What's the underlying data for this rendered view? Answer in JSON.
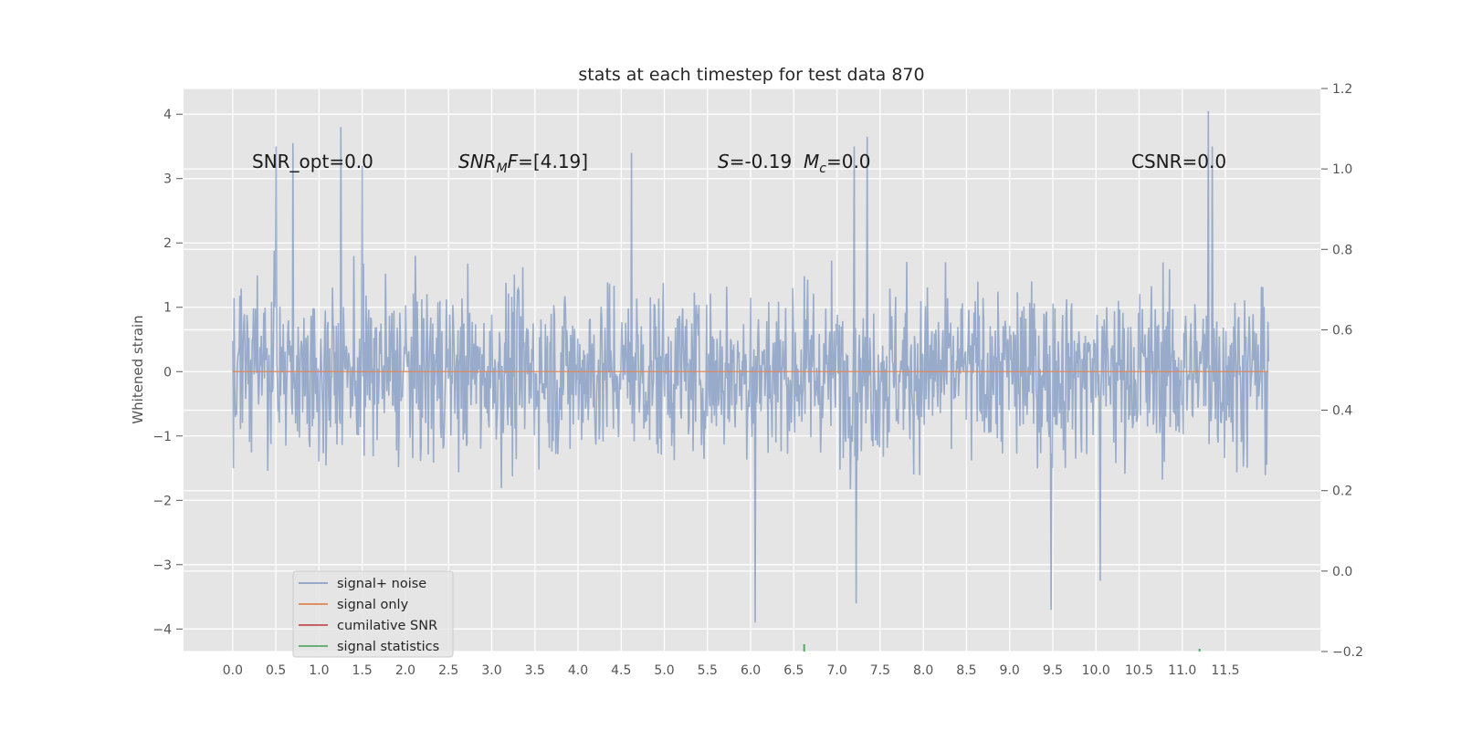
{
  "chart_data": {
    "type": "line",
    "title": "stats at each timestep for test data 870",
    "ylabel": "Whitened strain",
    "xlabel": "",
    "xlim": [
      -0.57,
      12.6
    ],
    "ylim": [
      -4.35,
      4.4
    ],
    "y2lim": [
      -0.2,
      1.2
    ],
    "x_ticks": [
      0.0,
      0.5,
      1.0,
      1.5,
      2.0,
      2.5,
      3.0,
      3.5,
      4.0,
      4.5,
      5.0,
      5.5,
      6.0,
      6.5,
      7.0,
      7.5,
      8.0,
      8.5,
      9.0,
      9.5,
      10.0,
      10.5,
      11.0,
      11.5
    ],
    "x_tick_labels": [
      "0.0",
      "0.5",
      "1.0",
      "1.5",
      "2.0",
      "2.5",
      "3.0",
      "3.5",
      "4.0",
      "4.5",
      "5.0",
      "5.5",
      "6.0",
      "6.5",
      "7.0",
      "7.5",
      "8.0",
      "8.5",
      "9.0",
      "9.5",
      "10.0",
      "10.5",
      "11.0",
      "11.5"
    ],
    "y_ticks": [
      -4,
      -3,
      -2,
      -1,
      0,
      1,
      2,
      3,
      4
    ],
    "y_tick_labels": [
      "−4",
      "−3",
      "−2",
      "−1",
      "0",
      "1",
      "2",
      "3",
      "4"
    ],
    "y2_ticks": [
      -0.2,
      0.0,
      0.2,
      0.4,
      0.6,
      0.8,
      1.0,
      1.2
    ],
    "y2_tick_labels": [
      "−0.2",
      "0.0",
      "0.2",
      "0.4",
      "0.6",
      "0.8",
      "1.0",
      "1.2"
    ],
    "grid": true,
    "legend_position": "lower-left",
    "series": [
      {
        "name": "signal+ noise",
        "color": "#4c72b0",
        "x_range": [
          0.0,
          12.0
        ],
        "typical_range": [
          -1.8,
          2.0
        ],
        "peaks": [
          [
            0.5,
            3.5
          ],
          [
            0.7,
            3.55
          ],
          [
            1.25,
            3.8
          ],
          [
            1.5,
            3.2
          ],
          [
            4.62,
            3.4
          ],
          [
            6.0,
            1.15
          ],
          [
            6.05,
            -3.9
          ],
          [
            7.2,
            3.5
          ],
          [
            7.35,
            3.65
          ],
          [
            7.22,
            -3.6
          ],
          [
            9.48,
            -3.7
          ],
          [
            10.05,
            -3.25
          ],
          [
            11.3,
            4.05
          ],
          [
            11.35,
            3.5
          ]
        ]
      },
      {
        "name": "signal only",
        "color": "#dd8452",
        "values_constant": 0.0
      },
      {
        "name": "cumilative SNR",
        "color": "#c44e52"
      },
      {
        "name": "signal statistics",
        "color": "#55a868",
        "points": [
          [
            6.62,
            -0.2
          ],
          [
            11.2,
            -0.2
          ]
        ]
      }
    ],
    "annotations": {
      "snr_opt": "SNR_opt=0.0",
      "snrmf_value": "=[4.19]",
      "s_value": "=-0.19",
      "mc_value": "=0.0",
      "csnr": "CSNR=0.0"
    },
    "legend_entries": [
      {
        "label": "signal+ noise",
        "color": "#4c72b0"
      },
      {
        "label": "signal only",
        "color": "#dd8452"
      },
      {
        "label": "cumilative SNR",
        "color": "#c44e52"
      },
      {
        "label": "signal statistics",
        "color": "#55a868"
      }
    ],
    "background": "#e5e5e5"
  }
}
